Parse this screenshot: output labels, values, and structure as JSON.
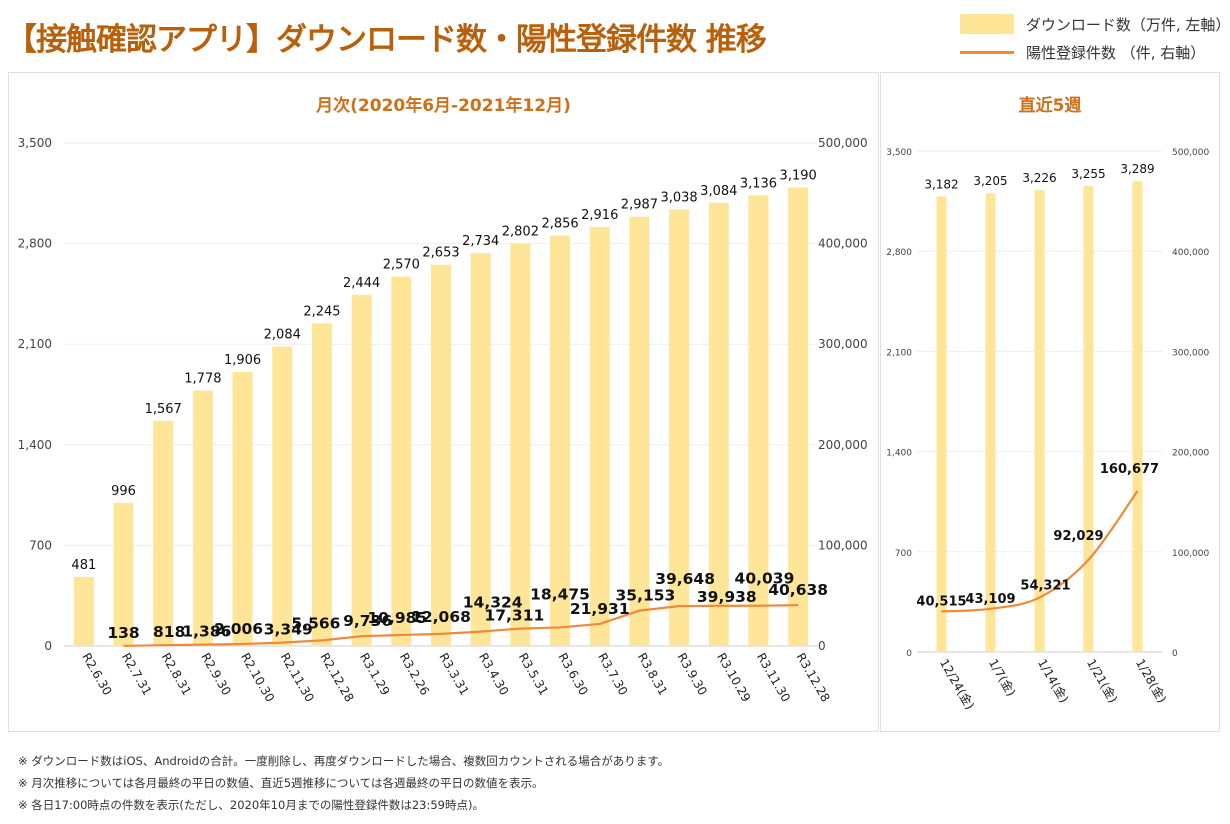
{
  "title": "【接触確認アプリ】ダウンロード数・陽性登録件数 推移",
  "legend": {
    "downloads": "ダウンロード数（万件, 左軸）",
    "positives": "陽性登録件数 （件, 右軸）"
  },
  "colors": {
    "bar": "#ffe597",
    "line": "#ee8a3a",
    "title": "#b8600b",
    "subtitle": "#cf6f18"
  },
  "chart_data": [
    {
      "type": "bar",
      "title": "月次(2020年6月-2021年12月)",
      "categories": [
        "R2.6.30",
        "R2.7.31",
        "R2.8.31",
        "R2.9.30",
        "R2.10.30",
        "R2.11.30",
        "R2.12.28",
        "R3.1.29",
        "R3.2.26",
        "R3.3.31",
        "R3.4.30",
        "R3.5.31",
        "R3.6.30",
        "R3.7.30",
        "R3.8.31",
        "R3.9.30",
        "R3.10.29",
        "R3.11.30",
        "R3.12.28"
      ],
      "series": [
        {
          "name": "ダウンロード数（万件, 左軸）",
          "type": "bar",
          "axis": "left",
          "values": [
            481,
            996,
            1567,
            1778,
            1906,
            2084,
            2245,
            2444,
            2570,
            2653,
            2734,
            2802,
            2856,
            2916,
            2987,
            3038,
            3084,
            3136,
            3190
          ],
          "labels": [
            "481",
            "996",
            "1,567",
            "1,778",
            "1,906",
            "2,084",
            "2,245",
            "2,444",
            "2,570",
            "2,653",
            "2,734",
            "2,802",
            "2,856",
            "2,916",
            "2,987",
            "3,038",
            "3,084",
            "3,136",
            "3,190"
          ]
        },
        {
          "name": "陽性登録件数 （件, 右軸）",
          "type": "line",
          "axis": "right",
          "values": [
            null,
            138,
            818,
            1386,
            2006,
            3349,
            5566,
            9736,
            10985,
            12068,
            14324,
            17311,
            18475,
            21931,
            35153,
            39648,
            39938,
            40039,
            40638
          ],
          "labels": [
            null,
            "138",
            "818",
            "1,386",
            "2,006",
            "3,349",
            "5,566",
            "9,736",
            "10,985",
            "12,068",
            "14,324",
            "17,311",
            "18,475",
            "21,931",
            "35,153",
            "39,648",
            "39,938",
            "40,039",
            "40,638"
          ]
        }
      ],
      "y_left": {
        "ylim": [
          0,
          3500
        ],
        "ticks": [
          "0",
          "700",
          "1,400",
          "2,100",
          "2,800",
          "3,500"
        ]
      },
      "y_right": {
        "ylim": [
          0,
          500000
        ],
        "ticks": [
          "0",
          "100,000",
          "200,000",
          "300,000",
          "400,000",
          "500,000"
        ]
      }
    },
    {
      "type": "bar",
      "title": "直近5週",
      "categories": [
        "12/24(金)",
        "1/7(金)",
        "1/14(金)",
        "1/21(金)",
        "1/28(金)"
      ],
      "series": [
        {
          "name": "ダウンロード数（万件, 左軸）",
          "type": "bar",
          "axis": "left",
          "values": [
            3182,
            3205,
            3226,
            3255,
            3289
          ],
          "labels": [
            "3,182",
            "3,205",
            "3,226",
            "3,255",
            "3,289"
          ]
        },
        {
          "name": "陽性登録件数 （件, 右軸）",
          "type": "line",
          "axis": "right",
          "values": [
            40515,
            43109,
            54321,
            92029,
            160677
          ],
          "labels": [
            "40,515",
            "43,109",
            "54,321",
            "92,029",
            "160,677"
          ]
        }
      ],
      "y_left": {
        "ylim": [
          0,
          3500
        ],
        "ticks": [
          "0",
          "700",
          "1,400",
          "2,100",
          "2,800",
          "3,500"
        ]
      },
      "y_right": {
        "ylim": [
          0,
          500000
        ],
        "ticks": [
          "0",
          "100,000",
          "200,000",
          "300,000",
          "400,000",
          "500,000"
        ]
      }
    }
  ],
  "notes": [
    "※ ダウンロード数はiOS、Androidの合計。一度削除し、再度ダウンロードした場合、複数回カウントされる場合があります。",
    "※ 月次推移については各月最終の平日の数値、直近5週推移については各週最終の平日の数値を表示。",
    "※ 各日17:00時点の件数を表示(ただし、2020年10月までの陽性登録件数は23:59時点)。"
  ]
}
